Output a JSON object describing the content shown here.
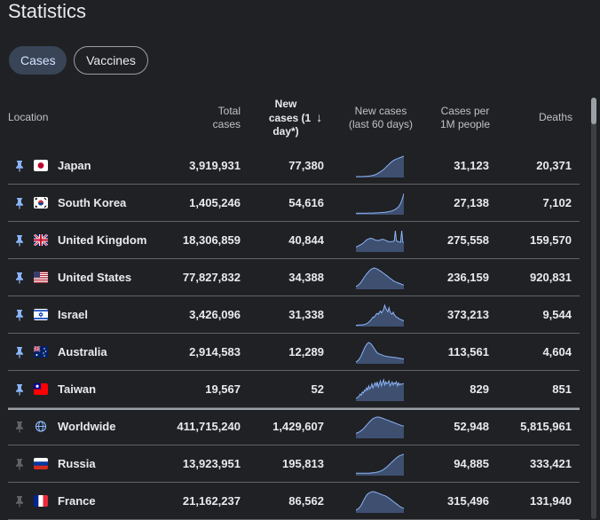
{
  "page": {
    "title": "Statistics"
  },
  "chips": {
    "cases": "Cases",
    "vaccines": "Vaccines"
  },
  "columns": {
    "location": "Location",
    "total": [
      "Total",
      "cases"
    ],
    "new": [
      "New",
      "cases (1",
      "day*)"
    ],
    "trend": [
      "New cases",
      "(last 60 days)"
    ],
    "per_million": [
      "Cases per",
      "1M people"
    ],
    "deaths": "Deaths"
  },
  "rows": [
    {
      "name": "Japan",
      "flag": "japan",
      "pinned": true,
      "total": "3,919,931",
      "new": "77,380",
      "per": "31,123",
      "deaths": "20,371",
      "trend": [
        0,
        0,
        0,
        0,
        0,
        0,
        0,
        0,
        1,
        1,
        1,
        2,
        2,
        3,
        4,
        5,
        6,
        7,
        9,
        11,
        14,
        17,
        20,
        24,
        27,
        31,
        35,
        40,
        45,
        50,
        55,
        60,
        65,
        70,
        74,
        78,
        81,
        84,
        86,
        88,
        90,
        92,
        94,
        96,
        98,
        100
      ]
    },
    {
      "name": "South Korea",
      "flag": "korea",
      "pinned": true,
      "total": "1,405,246",
      "new": "54,616",
      "per": "27,138",
      "deaths": "7,102",
      "trend": [
        3,
        3,
        3,
        3,
        3,
        3,
        3,
        3,
        3,
        3,
        3,
        3,
        4,
        4,
        4,
        4,
        4,
        4,
        5,
        5,
        5,
        5,
        6,
        6,
        6,
        7,
        7,
        8,
        8,
        9,
        10,
        11,
        12,
        13,
        15,
        17,
        19,
        22,
        26,
        30,
        35,
        42,
        52,
        65,
        80,
        100
      ]
    },
    {
      "name": "United Kingdom",
      "flag": "uk",
      "pinned": true,
      "total": "18,306,859",
      "new": "40,844",
      "per": "275,558",
      "deaths": "159,570",
      "trend": [
        20,
        22,
        25,
        28,
        30,
        33,
        36,
        40,
        45,
        50,
        55,
        58,
        60,
        62,
        63,
        62,
        60,
        57,
        55,
        53,
        52,
        52,
        53,
        55,
        57,
        58,
        57,
        55,
        53,
        50,
        48,
        47,
        46,
        46,
        47,
        48,
        50,
        100,
        52,
        48,
        46,
        45,
        44,
        100,
        43,
        42
      ]
    },
    {
      "name": "United States",
      "flag": "us",
      "pinned": true,
      "total": "77,827,832",
      "new": "34,388",
      "per": "236,159",
      "deaths": "920,831",
      "trend": [
        10,
        12,
        15,
        20,
        25,
        32,
        40,
        48,
        56,
        63,
        70,
        76,
        82,
        88,
        92,
        96,
        98,
        100,
        99,
        97,
        95,
        92,
        88,
        85,
        82,
        78,
        74,
        70,
        66,
        62,
        58,
        54,
        50,
        46,
        42,
        38,
        35,
        32,
        30,
        28,
        26,
        24,
        22,
        20,
        18,
        16
      ]
    },
    {
      "name": "Israel",
      "flag": "israel",
      "pinned": true,
      "total": "3,426,096",
      "new": "31,338",
      "per": "373,213",
      "deaths": "9,544",
      "trend": [
        2,
        2,
        3,
        3,
        3,
        4,
        4,
        5,
        6,
        8,
        10,
        13,
        17,
        22,
        28,
        35,
        42,
        40,
        48,
        56,
        60,
        55,
        65,
        72,
        62,
        70,
        80,
        100,
        85,
        76,
        68,
        88,
        70,
        60,
        56,
        66,
        54,
        48,
        42,
        40,
        36,
        32,
        30,
        28,
        26,
        24
      ]
    },
    {
      "name": "Australia",
      "flag": "australia",
      "pinned": true,
      "total": "2,914,583",
      "new": "12,289",
      "per": "113,561",
      "deaths": "4,604",
      "trend": [
        5,
        8,
        12,
        18,
        26,
        36,
        48,
        60,
        72,
        82,
        90,
        96,
        100,
        98,
        94,
        88,
        80,
        72,
        64,
        56,
        50,
        46,
        44,
        42,
        40,
        38,
        36,
        34,
        33,
        32,
        31,
        30,
        30,
        29,
        28,
        28,
        27,
        26,
        26,
        25,
        24,
        23,
        22,
        21,
        20,
        20
      ]
    },
    {
      "name": "Taiwan",
      "flag": "taiwan",
      "pinned": true,
      "total": "19,567",
      "new": "52",
      "per": "829",
      "deaths": "851",
      "trend": [
        10,
        12,
        15,
        20,
        30,
        25,
        40,
        35,
        50,
        45,
        60,
        50,
        70,
        55,
        65,
        80,
        60,
        75,
        85,
        70,
        90,
        65,
        80,
        95,
        70,
        85,
        100,
        75,
        90,
        80,
        85,
        95,
        70,
        80,
        90,
        75,
        85,
        80,
        90,
        70,
        85,
        75,
        80,
        78,
        80,
        82
      ]
    },
    {
      "name": "Worldwide",
      "flag": "globe",
      "pinned": false,
      "total": "411,715,240",
      "new": "1,429,607",
      "per": "52,948",
      "deaths": "5,815,961",
      "trend": [
        20,
        22,
        24,
        27,
        30,
        34,
        38,
        43,
        48,
        54,
        60,
        66,
        72,
        78,
        83,
        88,
        92,
        95,
        97,
        99,
        100,
        100,
        99,
        98,
        96,
        94,
        92,
        90,
        88,
        86,
        84,
        82,
        80,
        78,
        76,
        74,
        72,
        70,
        68,
        66,
        64,
        62,
        60,
        58,
        57,
        56
      ]
    },
    {
      "name": "Russia",
      "flag": "russia",
      "pinned": false,
      "total": "13,923,951",
      "new": "195,813",
      "per": "94,885",
      "deaths": "333,421",
      "trend": [
        8,
        8,
        8,
        8,
        8,
        8,
        8,
        8,
        8,
        8,
        8,
        8,
        8,
        8,
        9,
        9,
        10,
        10,
        11,
        12,
        13,
        14,
        16,
        18,
        20,
        23,
        26,
        30,
        34,
        38,
        43,
        48,
        53,
        58,
        63,
        68,
        73,
        78,
        82,
        86,
        90,
        93,
        95,
        97,
        99,
        100
      ]
    },
    {
      "name": "France",
      "flag": "france",
      "pinned": false,
      "total": "21,162,237",
      "new": "86,562",
      "per": "315,496",
      "deaths": "131,940",
      "trend": [
        10,
        12,
        15,
        20,
        26,
        34,
        44,
        55,
        65,
        74,
        82,
        88,
        92,
        95,
        97,
        99,
        100,
        99,
        98,
        96,
        94,
        92,
        90,
        88,
        86,
        84,
        82,
        80,
        78,
        75,
        72,
        68,
        64,
        60,
        56,
        52,
        48,
        44,
        40,
        36,
        32,
        28,
        25,
        22,
        20,
        18
      ]
    }
  ],
  "colors": {
    "spark_fill": "#3e4f70",
    "spark_line": "#8ab4f8"
  }
}
